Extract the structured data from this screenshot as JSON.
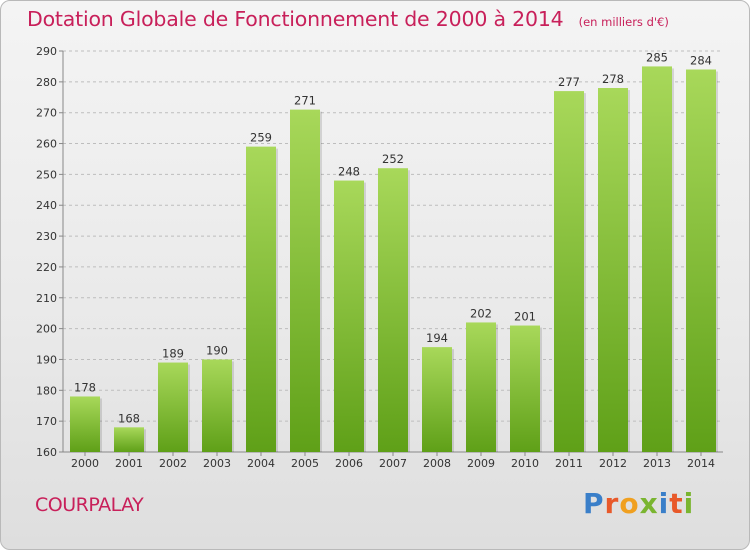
{
  "title": "Dotation Globale de Fonctionnement de 2000 à 2014",
  "unit_note": "(en milliers d'€)",
  "commune": "COURPALAY",
  "logo": {
    "text": "Proxiti",
    "letters": [
      {
        "ch": "P",
        "color": "#3a7fc9"
      },
      {
        "ch": "r",
        "color": "#e8592a"
      },
      {
        "ch": "o",
        "color": "#f0a020"
      },
      {
        "ch": "x",
        "color": "#7ab530"
      },
      {
        "ch": "i",
        "color": "#3a7fc9"
      },
      {
        "ch": "t",
        "color": "#e8592a"
      },
      {
        "ch": "i",
        "color": "#7ab530"
      }
    ]
  },
  "colors": {
    "title": "#c8205a",
    "bar_light": "#a8d85a",
    "bar_dark": "#5fa018",
    "grid": "#bdbdbd"
  },
  "chart_data": {
    "type": "bar",
    "categories": [
      "2000",
      "2001",
      "2002",
      "2003",
      "2004",
      "2005",
      "2006",
      "2007",
      "2008",
      "2009",
      "2010",
      "2011",
      "2012",
      "2013",
      "2014"
    ],
    "values": [
      178,
      168,
      189,
      190,
      259,
      271,
      248,
      252,
      194,
      202,
      201,
      277,
      278,
      285,
      284
    ],
    "ylim": [
      160,
      290
    ],
    "yticks": [
      160,
      170,
      180,
      190,
      200,
      210,
      220,
      230,
      240,
      250,
      260,
      270,
      280,
      290
    ],
    "grid": "horizontal dashed",
    "legend": "none"
  }
}
